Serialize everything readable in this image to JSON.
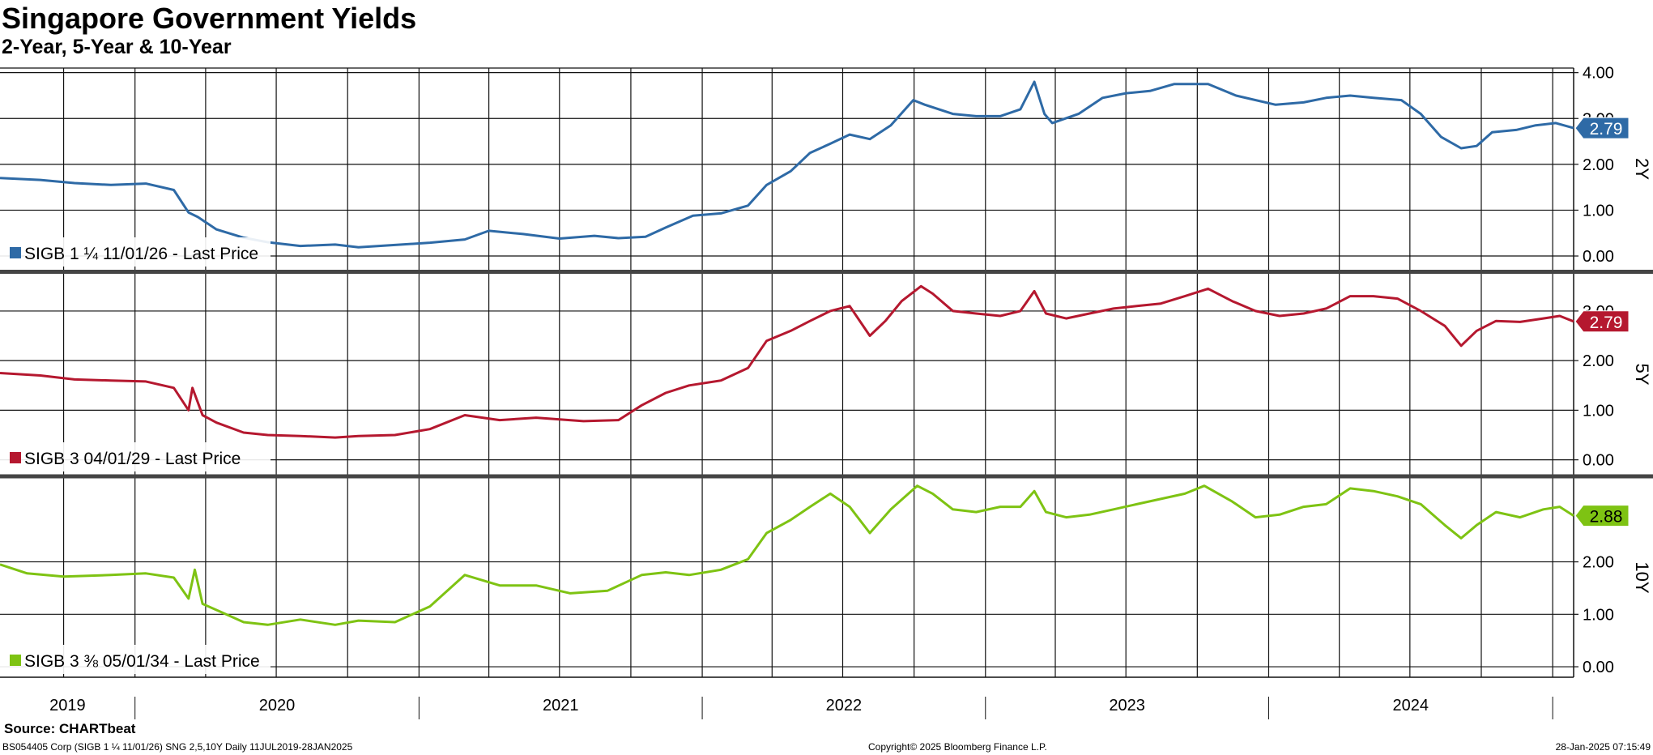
{
  "header": {
    "title": "Singapore Government Yields",
    "subtitle": "2-Year, 5-Year & 10-Year"
  },
  "footer": {
    "source": "Source: CHARTbeat",
    "left": "BS054405 Corp (SIGB 1 ¼ 11/01/26) SNG 2,5,10Y  Daily 11JUL2019-28JAN2025",
    "center": "Copyright© 2025 Bloomberg Finance L.P.",
    "right": "28-Jan-2025 07:15:49"
  },
  "chart_data": {
    "type": "line",
    "x_range": [
      "2019-07-11",
      "2025-01-28"
    ],
    "year_labels": [
      "2019",
      "2020",
      "2021",
      "2022",
      "2023",
      "2024"
    ],
    "panels": [
      {
        "axis_title": "2Y",
        "ylim": [
          -0.3,
          4.1
        ],
        "yticks": [
          "4.00",
          "3.00",
          "2.00",
          "1.00",
          "0.00"
        ],
        "tick_values": [
          4,
          3,
          2,
          1,
          0
        ],
        "color": "#2e6aa6",
        "legend": "SIGB 1 ¼ 11/01/26 - Last Price",
        "last_value": "2.79",
        "points": [
          [
            "2019-07-11",
            1.7
          ],
          [
            "2019-09-01",
            1.66
          ],
          [
            "2019-10-15",
            1.59
          ],
          [
            "2019-12-01",
            1.55
          ],
          [
            "2020-01-15",
            1.58
          ],
          [
            "2020-02-20",
            1.44
          ],
          [
            "2020-03-10",
            0.95
          ],
          [
            "2020-03-22",
            0.85
          ],
          [
            "2020-04-15",
            0.58
          ],
          [
            "2020-05-20",
            0.4
          ],
          [
            "2020-06-20",
            0.3
          ],
          [
            "2020-08-01",
            0.22
          ],
          [
            "2020-09-15",
            0.25
          ],
          [
            "2020-10-15",
            0.19
          ],
          [
            "2020-12-01",
            0.24
          ],
          [
            "2021-01-15",
            0.29
          ],
          [
            "2021-03-01",
            0.36
          ],
          [
            "2021-04-01",
            0.55
          ],
          [
            "2021-05-15",
            0.48
          ],
          [
            "2021-07-01",
            0.38
          ],
          [
            "2021-08-15",
            0.44
          ],
          [
            "2021-09-15",
            0.39
          ],
          [
            "2021-10-20",
            0.42
          ],
          [
            "2021-11-15",
            0.62
          ],
          [
            "2021-12-20",
            0.88
          ],
          [
            "2022-01-25",
            0.93
          ],
          [
            "2022-03-01",
            1.1
          ],
          [
            "2022-03-25",
            1.55
          ],
          [
            "2022-04-25",
            1.85
          ],
          [
            "2022-05-20",
            2.25
          ],
          [
            "2022-06-15",
            2.45
          ],
          [
            "2022-07-10",
            2.65
          ],
          [
            "2022-08-05",
            2.55
          ],
          [
            "2022-09-01",
            2.85
          ],
          [
            "2022-09-30",
            3.4
          ],
          [
            "2022-10-15",
            3.3
          ],
          [
            "2022-11-20",
            3.1
          ],
          [
            "2022-12-20",
            3.05
          ],
          [
            "2023-01-20",
            3.05
          ],
          [
            "2023-02-15",
            3.2
          ],
          [
            "2023-03-05",
            3.8
          ],
          [
            "2023-03-18",
            3.1
          ],
          [
            "2023-03-28",
            2.9
          ],
          [
            "2023-05-01",
            3.1
          ],
          [
            "2023-06-01",
            3.45
          ],
          [
            "2023-07-01",
            3.55
          ],
          [
            "2023-08-01",
            3.6
          ],
          [
            "2023-09-01",
            3.75
          ],
          [
            "2023-10-15",
            3.75
          ],
          [
            "2023-11-20",
            3.5
          ],
          [
            "2024-01-10",
            3.3
          ],
          [
            "2024-02-15",
            3.35
          ],
          [
            "2024-03-15",
            3.45
          ],
          [
            "2024-04-15",
            3.5
          ],
          [
            "2024-05-15",
            3.45
          ],
          [
            "2024-06-20",
            3.4
          ],
          [
            "2024-07-15",
            3.1
          ],
          [
            "2024-08-10",
            2.6
          ],
          [
            "2024-09-05",
            2.35
          ],
          [
            "2024-09-25",
            2.4
          ],
          [
            "2024-10-15",
            2.7
          ],
          [
            "2024-11-15",
            2.75
          ],
          [
            "2024-12-10",
            2.85
          ],
          [
            "2025-01-05",
            2.9
          ],
          [
            "2025-01-28",
            2.79
          ]
        ]
      },
      {
        "axis_title": "5Y",
        "ylim": [
          -0.3,
          3.75
        ],
        "yticks": [
          "3.00",
          "2.00",
          "1.00",
          "0.00"
        ],
        "tick_values": [
          3,
          2,
          1,
          0
        ],
        "color": "#b5182f",
        "legend": "SIGB 3 04/01/29 - Last Price",
        "last_value": "2.79",
        "points": [
          [
            "2019-07-11",
            1.75
          ],
          [
            "2019-09-01",
            1.7
          ],
          [
            "2019-10-15",
            1.62
          ],
          [
            "2019-12-01",
            1.6
          ],
          [
            "2020-01-15",
            1.58
          ],
          [
            "2020-02-20",
            1.45
          ],
          [
            "2020-03-10",
            1.0
          ],
          [
            "2020-03-15",
            1.45
          ],
          [
            "2020-03-28",
            0.9
          ],
          [
            "2020-04-15",
            0.75
          ],
          [
            "2020-05-20",
            0.55
          ],
          [
            "2020-06-20",
            0.5
          ],
          [
            "2020-08-01",
            0.48
          ],
          [
            "2020-09-15",
            0.45
          ],
          [
            "2020-10-15",
            0.48
          ],
          [
            "2020-12-01",
            0.5
          ],
          [
            "2021-01-15",
            0.62
          ],
          [
            "2021-03-01",
            0.9
          ],
          [
            "2021-04-15",
            0.8
          ],
          [
            "2021-06-01",
            0.85
          ],
          [
            "2021-08-01",
            0.78
          ],
          [
            "2021-09-15",
            0.8
          ],
          [
            "2021-10-15",
            1.1
          ],
          [
            "2021-11-15",
            1.35
          ],
          [
            "2021-12-15",
            1.5
          ],
          [
            "2022-01-25",
            1.6
          ],
          [
            "2022-03-01",
            1.85
          ],
          [
            "2022-03-25",
            2.4
          ],
          [
            "2022-04-25",
            2.6
          ],
          [
            "2022-05-20",
            2.8
          ],
          [
            "2022-06-15",
            3.0
          ],
          [
            "2022-07-10",
            3.1
          ],
          [
            "2022-08-05",
            2.5
          ],
          [
            "2022-08-25",
            2.8
          ],
          [
            "2022-09-15",
            3.2
          ],
          [
            "2022-10-10",
            3.5
          ],
          [
            "2022-10-25",
            3.35
          ],
          [
            "2022-11-20",
            3.0
          ],
          [
            "2022-12-20",
            2.95
          ],
          [
            "2023-01-20",
            2.9
          ],
          [
            "2023-02-15",
            3.0
          ],
          [
            "2023-03-05",
            3.4
          ],
          [
            "2023-03-20",
            2.95
          ],
          [
            "2023-04-15",
            2.85
          ],
          [
            "2023-05-15",
            2.95
          ],
          [
            "2023-06-15",
            3.05
          ],
          [
            "2023-07-15",
            3.1
          ],
          [
            "2023-08-15",
            3.15
          ],
          [
            "2023-09-15",
            3.3
          ],
          [
            "2023-10-15",
            3.45
          ],
          [
            "2023-11-15",
            3.2
          ],
          [
            "2023-12-15",
            3.0
          ],
          [
            "2024-01-15",
            2.9
          ],
          [
            "2024-02-15",
            2.95
          ],
          [
            "2024-03-15",
            3.05
          ],
          [
            "2024-04-15",
            3.3
          ],
          [
            "2024-05-15",
            3.3
          ],
          [
            "2024-06-15",
            3.25
          ],
          [
            "2024-07-15",
            3.0
          ],
          [
            "2024-08-15",
            2.7
          ],
          [
            "2024-09-05",
            2.3
          ],
          [
            "2024-09-25",
            2.6
          ],
          [
            "2024-10-20",
            2.8
          ],
          [
            "2024-11-20",
            2.78
          ],
          [
            "2024-12-20",
            2.85
          ],
          [
            "2025-01-10",
            2.9
          ],
          [
            "2025-01-28",
            2.79
          ]
        ]
      },
      {
        "axis_title": "10Y",
        "ylim": [
          -0.2,
          3.6
        ],
        "yticks": [
          "2.00",
          "1.00",
          "0.00"
        ],
        "tick_values": [
          2,
          1,
          0
        ],
        "color": "#7ec313",
        "legend": "SIGB 3 ⅜ 05/01/34 - Last Price",
        "last_value": "2.88",
        "points": [
          [
            "2019-07-11",
            1.95
          ],
          [
            "2019-08-15",
            1.78
          ],
          [
            "2019-10-01",
            1.72
          ],
          [
            "2019-12-01",
            1.75
          ],
          [
            "2020-01-15",
            1.78
          ],
          [
            "2020-02-20",
            1.7
          ],
          [
            "2020-03-10",
            1.3
          ],
          [
            "2020-03-18",
            1.85
          ],
          [
            "2020-03-28",
            1.2
          ],
          [
            "2020-04-20",
            1.05
          ],
          [
            "2020-05-20",
            0.85
          ],
          [
            "2020-06-20",
            0.8
          ],
          [
            "2020-08-01",
            0.9
          ],
          [
            "2020-09-15",
            0.8
          ],
          [
            "2020-10-15",
            0.88
          ],
          [
            "2020-12-01",
            0.85
          ],
          [
            "2021-01-15",
            1.15
          ],
          [
            "2021-03-01",
            1.75
          ],
          [
            "2021-04-15",
            1.55
          ],
          [
            "2021-06-01",
            1.55
          ],
          [
            "2021-07-15",
            1.4
          ],
          [
            "2021-09-01",
            1.45
          ],
          [
            "2021-10-15",
            1.75
          ],
          [
            "2021-11-15",
            1.8
          ],
          [
            "2021-12-15",
            1.75
          ],
          [
            "2022-01-25",
            1.85
          ],
          [
            "2022-03-01",
            2.05
          ],
          [
            "2022-03-25",
            2.55
          ],
          [
            "2022-04-25",
            2.8
          ],
          [
            "2022-05-20",
            3.05
          ],
          [
            "2022-06-15",
            3.3
          ],
          [
            "2022-07-10",
            3.05
          ],
          [
            "2022-08-05",
            2.55
          ],
          [
            "2022-09-01",
            3.0
          ],
          [
            "2022-10-05",
            3.45
          ],
          [
            "2022-10-25",
            3.3
          ],
          [
            "2022-11-20",
            3.0
          ],
          [
            "2022-12-20",
            2.95
          ],
          [
            "2023-01-20",
            3.05
          ],
          [
            "2023-02-15",
            3.05
          ],
          [
            "2023-03-05",
            3.35
          ],
          [
            "2023-03-20",
            2.95
          ],
          [
            "2023-04-15",
            2.85
          ],
          [
            "2023-05-15",
            2.9
          ],
          [
            "2023-06-15",
            3.0
          ],
          [
            "2023-07-15",
            3.1
          ],
          [
            "2023-08-15",
            3.2
          ],
          [
            "2023-09-15",
            3.3
          ],
          [
            "2023-10-10",
            3.45
          ],
          [
            "2023-11-15",
            3.15
          ],
          [
            "2023-12-15",
            2.85
          ],
          [
            "2024-01-15",
            2.9
          ],
          [
            "2024-02-15",
            3.05
          ],
          [
            "2024-03-15",
            3.1
          ],
          [
            "2024-04-15",
            3.4
          ],
          [
            "2024-05-15",
            3.35
          ],
          [
            "2024-06-15",
            3.25
          ],
          [
            "2024-07-15",
            3.1
          ],
          [
            "2024-08-15",
            2.7
          ],
          [
            "2024-09-05",
            2.45
          ],
          [
            "2024-09-25",
            2.7
          ],
          [
            "2024-10-20",
            2.95
          ],
          [
            "2024-11-20",
            2.85
          ],
          [
            "2024-12-20",
            3.0
          ],
          [
            "2025-01-10",
            3.05
          ],
          [
            "2025-01-28",
            2.88
          ]
        ]
      }
    ]
  }
}
